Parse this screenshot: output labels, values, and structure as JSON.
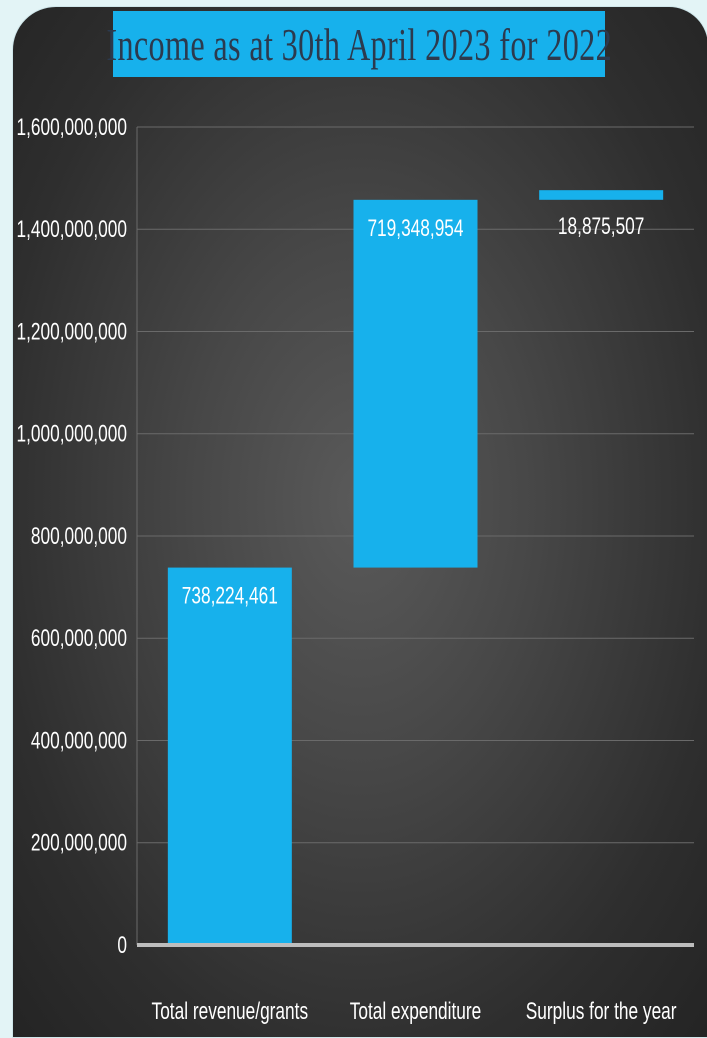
{
  "chart_data": {
    "type": "bar",
    "subtype": "waterfall",
    "title": "Income as at 30th April 2023 for 2022",
    "categories": [
      "Total revenue/grants",
      "Total expenditure",
      "Surplus for the year"
    ],
    "series": [
      {
        "values": [
          738224461,
          719348954,
          18875507
        ],
        "bases": [
          0,
          738224461,
          1457573415
        ],
        "value_labels": [
          "738,224,461",
          "719,348,954",
          "18,875,507"
        ]
      }
    ],
    "ylim": [
      0,
      1600000000
    ],
    "yticks": [
      0,
      200000000,
      400000000,
      600000000,
      800000000,
      1000000000,
      1200000000,
      1400000000,
      1600000000
    ],
    "ytick_labels": [
      "0",
      "200,000,000",
      "400,000,000",
      "600,000,000",
      "800,000,000",
      "1,000,000,000",
      "1,200,000,000",
      "1,400,000,000",
      "1,600,000,000"
    ],
    "xlabel": "",
    "ylabel": "",
    "grid": true,
    "legend": "none",
    "colors": {
      "bar": "#17b1ec",
      "title_bg": "#17b1ec",
      "title_text": "#2c3a4e",
      "background": "#3c3c3c",
      "page_bg": "#e3f4f6",
      "axis": "#bdbdbd",
      "grid": "#6a6a6a",
      "label_on_bar": "#ffffff",
      "label_off_bar": "#ffffff"
    }
  }
}
